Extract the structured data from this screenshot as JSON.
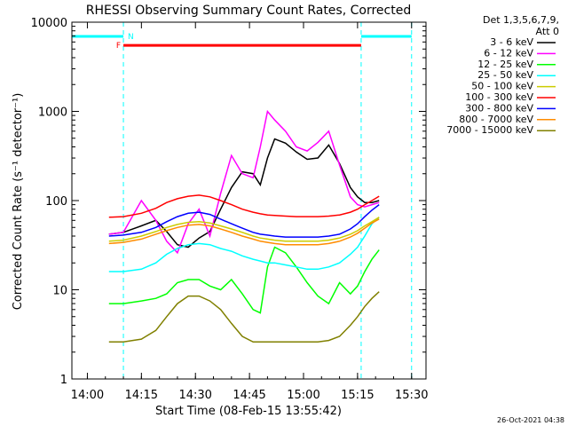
{
  "chart_data": {
    "type": "line",
    "title": "RHESSI Observing Summary Count Rates, Corrected",
    "xlabel": "Start Time (08-Feb-15 13:55:42)",
    "ylabel": "Corrected Count Rate (s⁻¹ detector⁻¹)",
    "y_scale": "log",
    "ylim": [
      1,
      10000
    ],
    "xlim": [
      "13:55:42",
      "15:34:00"
    ],
    "x_ticks": [
      "14:00",
      "14:15",
      "14:30",
      "14:45",
      "15:00",
      "15:15",
      "15:30"
    ],
    "y_ticks": [
      "1",
      "10",
      "100",
      "1000",
      "10000"
    ],
    "grid": false,
    "legend_position": "right",
    "detectors_label": "Det 1,3,5,6,7,9,",
    "attenuator_label": "Att 0",
    "footer_date": "26-Oct-2021 04:38",
    "markers": [
      {
        "label": "F",
        "color": "#ff0000",
        "start": "14:10",
        "end": "15:16",
        "y": 5500
      },
      {
        "label": "N",
        "color": "#00ffff",
        "start": "14:10",
        "end": "15:16"
      }
    ],
    "night_intervals": [
      [
        "13:55:42",
        "14:10"
      ],
      [
        "15:16",
        "15:30"
      ]
    ],
    "series": [
      {
        "name": "3 - 6 keV",
        "color": "#000000",
        "x": [
          "14:06",
          "14:10",
          "14:15",
          "14:19",
          "14:22",
          "14:25",
          "14:28",
          "14:31",
          "14:34",
          "14:37",
          "14:40",
          "14:43",
          "14:46",
          "14:48",
          "14:50",
          "14:52",
          "14:55",
          "14:58",
          "15:01",
          "15:04",
          "15:07",
          "15:10",
          "15:13",
          "15:15",
          "15:17",
          "15:19",
          "15:21"
        ],
        "y": [
          42,
          44,
          52,
          60,
          45,
          32,
          30,
          38,
          45,
          80,
          140,
          210,
          200,
          150,
          300,
          490,
          440,
          350,
          290,
          300,
          420,
          260,
          140,
          110,
          95,
          95,
          100
        ]
      },
      {
        "name": "6 - 12 keV",
        "color": "#ff00ff",
        "x": [
          "14:06",
          "14:10",
          "14:15",
          "14:19",
          "14:22",
          "14:25",
          "14:28",
          "14:31",
          "14:34",
          "14:37",
          "14:40",
          "14:43",
          "14:46",
          "14:48",
          "14:50",
          "14:52",
          "14:55",
          "14:58",
          "15:01",
          "15:04",
          "15:07",
          "15:10",
          "15:13",
          "15:15",
          "15:17",
          "15:19",
          "15:21"
        ],
        "y": [
          42,
          44,
          100,
          60,
          35,
          26,
          55,
          80,
          40,
          120,
          320,
          200,
          180,
          400,
          1000,
          800,
          600,
          400,
          360,
          450,
          600,
          250,
          110,
          90,
          85,
          90,
          95
        ]
      },
      {
        "name": "12 - 25 keV",
        "color": "#00ff00",
        "x": [
          "14:06",
          "14:10",
          "14:15",
          "14:19",
          "14:22",
          "14:25",
          "14:28",
          "14:31",
          "14:34",
          "14:37",
          "14:40",
          "14:43",
          "14:46",
          "14:48",
          "14:50",
          "14:52",
          "14:55",
          "14:58",
          "15:01",
          "15:04",
          "15:07",
          "15:10",
          "15:13",
          "15:15",
          "15:17",
          "15:19",
          "15:21"
        ],
        "y": [
          7,
          7,
          7.5,
          8,
          9,
          12,
          13,
          13,
          11,
          10,
          13,
          9,
          6,
          5.5,
          18,
          30,
          26,
          18,
          12,
          8.5,
          7,
          12,
          9,
          11,
          16,
          22,
          28
        ]
      },
      {
        "name": "25 - 50 keV",
        "color": "#00ffff",
        "x": [
          "14:06",
          "14:10",
          "14:15",
          "14:19",
          "14:22",
          "14:25",
          "14:28",
          "14:31",
          "14:34",
          "14:37",
          "14:40",
          "14:43",
          "14:46",
          "14:48",
          "14:50",
          "14:52",
          "14:55",
          "14:58",
          "15:01",
          "15:04",
          "15:07",
          "15:10",
          "15:13",
          "15:15",
          "15:17",
          "15:19",
          "15:21"
        ],
        "y": [
          16,
          16,
          17,
          20,
          25,
          29,
          32,
          33,
          32,
          29,
          27,
          24,
          22,
          21,
          20,
          20,
          19,
          18,
          17,
          17,
          18,
          20,
          25,
          30,
          40,
          55,
          65
        ]
      },
      {
        "name": "50 - 100 keV",
        "color": "#cccc00",
        "x": [
          "14:06",
          "14:10",
          "14:15",
          "14:19",
          "14:22",
          "14:25",
          "14:28",
          "14:31",
          "14:34",
          "14:37",
          "14:40",
          "14:43",
          "14:46",
          "14:48",
          "14:50",
          "14:52",
          "14:55",
          "14:58",
          "15:01",
          "15:04",
          "15:07",
          "15:10",
          "15:13",
          "15:15",
          "15:17",
          "15:19",
          "15:21"
        ],
        "y": [
          35,
          36,
          40,
          45,
          50,
          54,
          57,
          58,
          56,
          52,
          48,
          44,
          40,
          38,
          37,
          36,
          35,
          35,
          35,
          35,
          36,
          38,
          42,
          46,
          52,
          58,
          65
        ]
      },
      {
        "name": "100 - 300 keV",
        "color": "#ff0000",
        "x": [
          "14:06",
          "14:10",
          "14:15",
          "14:19",
          "14:22",
          "14:25",
          "14:28",
          "14:31",
          "14:34",
          "14:37",
          "14:40",
          "14:43",
          "14:46",
          "14:48",
          "14:50",
          "14:52",
          "14:55",
          "14:58",
          "15:01",
          "15:04",
          "15:07",
          "15:10",
          "15:13",
          "15:15",
          "15:17",
          "15:19",
          "15:21"
        ],
        "y": [
          65,
          66,
          72,
          82,
          95,
          105,
          112,
          115,
          110,
          100,
          90,
          80,
          74,
          71,
          69,
          68,
          67,
          66,
          66,
          66,
          67,
          69,
          74,
          80,
          90,
          100,
          112
        ]
      },
      {
        "name": "300 - 800 keV",
        "color": "#0000ff",
        "x": [
          "14:06",
          "14:10",
          "14:15",
          "14:19",
          "14:22",
          "14:25",
          "14:28",
          "14:31",
          "14:34",
          "14:37",
          "14:40",
          "14:43",
          "14:46",
          "14:48",
          "14:50",
          "14:52",
          "14:55",
          "14:58",
          "15:01",
          "15:04",
          "15:07",
          "15:10",
          "15:13",
          "15:15",
          "15:17",
          "15:19",
          "15:21"
        ],
        "y": [
          40,
          41,
          44,
          50,
          58,
          66,
          72,
          74,
          70,
          62,
          55,
          49,
          44,
          42,
          41,
          40,
          39,
          39,
          39,
          39,
          40,
          42,
          48,
          55,
          66,
          78,
          90
        ]
      },
      {
        "name": "800 - 7000 keV",
        "color": "#ff8c00",
        "x": [
          "14:06",
          "14:10",
          "14:15",
          "14:19",
          "14:22",
          "14:25",
          "14:28",
          "14:31",
          "14:34",
          "14:37",
          "14:40",
          "14:43",
          "14:46",
          "14:48",
          "14:50",
          "14:52",
          "14:55",
          "14:58",
          "15:01",
          "15:04",
          "15:07",
          "15:10",
          "15:13",
          "15:15",
          "15:17",
          "15:19",
          "15:21"
        ],
        "y": [
          33,
          34,
          37,
          42,
          46,
          50,
          53,
          54,
          52,
          48,
          44,
          40,
          37,
          35,
          34,
          33,
          32,
          32,
          32,
          32,
          33,
          35,
          39,
          43,
          49,
          56,
          62
        ]
      },
      {
        "name": "7000 - 15000 keV",
        "color": "#808000",
        "x": [
          "14:06",
          "14:10",
          "14:15",
          "14:19",
          "14:22",
          "14:25",
          "14:28",
          "14:31",
          "14:34",
          "14:37",
          "14:40",
          "14:43",
          "14:46",
          "14:48",
          "14:50",
          "14:52",
          "14:55",
          "14:58",
          "15:01",
          "15:04",
          "15:07",
          "15:10",
          "15:13",
          "15:15",
          "15:17",
          "15:19",
          "15:21"
        ],
        "y": [
          2.6,
          2.6,
          2.8,
          3.5,
          5,
          7,
          8.5,
          8.5,
          7.5,
          6,
          4.2,
          3,
          2.6,
          2.6,
          2.6,
          2.6,
          2.6,
          2.6,
          2.6,
          2.6,
          2.7,
          3,
          4,
          5,
          6.5,
          8,
          9.5
        ]
      }
    ]
  }
}
